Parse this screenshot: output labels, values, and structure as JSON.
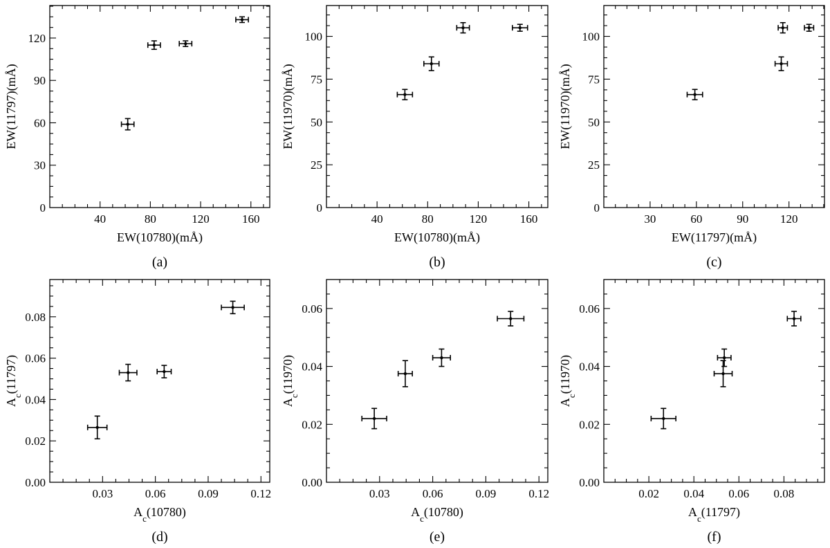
{
  "figure": {
    "panels": [
      {
        "panel_label": "(a)",
        "xlabel_main": "EW(10780)(mÅ)",
        "xlabel_sub": "",
        "xlabel_tail": "",
        "ylabel_main": "EW(11797)(mÅ)",
        "ylabel_sub": "",
        "ylabel_tail": ""
      },
      {
        "panel_label": "(b)",
        "xlabel_main": "EW(10780)(mÅ)",
        "xlabel_sub": "",
        "xlabel_tail": "",
        "ylabel_main": "EW(11970)(mÅ)",
        "ylabel_sub": "",
        "ylabel_tail": ""
      },
      {
        "panel_label": "(c)",
        "xlabel_main": "EW(11797)(mÅ)",
        "xlabel_sub": "",
        "xlabel_tail": "",
        "ylabel_main": "EW(11970)(mÅ)",
        "ylabel_sub": "",
        "ylabel_tail": ""
      },
      {
        "panel_label": "(d)",
        "xlabel_main": "A",
        "xlabel_sub": "c",
        "xlabel_tail": "(10780)",
        "ylabel_main": "A",
        "ylabel_sub": "c",
        "ylabel_tail": "(11797)"
      },
      {
        "panel_label": "(e)",
        "xlabel_main": "A",
        "xlabel_sub": "c",
        "xlabel_tail": "(10780)",
        "ylabel_main": "A",
        "ylabel_sub": "c",
        "ylabel_tail": "(11970)"
      },
      {
        "panel_label": "(f)",
        "xlabel_main": "A",
        "xlabel_sub": "c",
        "xlabel_tail": "(11797)",
        "ylabel_main": "A",
        "ylabel_sub": "c",
        "ylabel_tail": "(11970)"
      }
    ]
  },
  "chart_data": [
    {
      "type": "scatter",
      "title": "",
      "xlabel": "EW(10780)(mÅ)",
      "ylabel": "EW(11797)(mÅ)",
      "xlim": [
        0,
        175
      ],
      "ylim": [
        0,
        143
      ],
      "xticks": [
        40,
        80,
        120,
        160
      ],
      "yticks": [
        0,
        30,
        60,
        90,
        120
      ],
      "xtick_labels": [
        "40",
        "80",
        "120",
        "160"
      ],
      "ytick_labels": [
        "0",
        "30",
        "60",
        "90",
        "120"
      ],
      "grid": false,
      "points": [
        {
          "x": 62,
          "y": 59,
          "xerr": 5,
          "yerr": 4
        },
        {
          "x": 83,
          "y": 115,
          "xerr": 5,
          "yerr": 3
        },
        {
          "x": 108,
          "y": 116,
          "xerr": 5,
          "yerr": 2
        },
        {
          "x": 153,
          "y": 133,
          "xerr": 5,
          "yerr": 2
        }
      ]
    },
    {
      "type": "scatter",
      "title": "",
      "xlabel": "EW(10780)(mÅ)",
      "ylabel": "EW(11970)(mÅ)",
      "xlim": [
        0,
        175
      ],
      "ylim": [
        0,
        118
      ],
      "xticks": [
        40,
        80,
        120,
        160
      ],
      "yticks": [
        0,
        25,
        50,
        75,
        100
      ],
      "xtick_labels": [
        "40",
        "80",
        "120",
        "160"
      ],
      "ytick_labels": [
        "0",
        "25",
        "50",
        "75",
        "100"
      ],
      "grid": false,
      "points": [
        {
          "x": 62,
          "y": 66,
          "xerr": 6,
          "yerr": 3
        },
        {
          "x": 83,
          "y": 84,
          "xerr": 6,
          "yerr": 4
        },
        {
          "x": 108,
          "y": 105,
          "xerr": 5,
          "yerr": 3
        },
        {
          "x": 153,
          "y": 105,
          "xerr": 6,
          "yerr": 2
        }
      ]
    },
    {
      "type": "scatter",
      "title": "",
      "xlabel": "EW(11797)(mÅ)",
      "ylabel": "EW(11970)(mÅ)",
      "xlim": [
        0,
        143
      ],
      "ylim": [
        0,
        118
      ],
      "xticks": [
        30,
        60,
        90,
        120
      ],
      "yticks": [
        0,
        25,
        50,
        75,
        100
      ],
      "xtick_labels": [
        "30",
        "60",
        "90",
        "120"
      ],
      "ytick_labels": [
        "0",
        "25",
        "50",
        "75",
        "100"
      ],
      "grid": false,
      "points": [
        {
          "x": 59,
          "y": 66,
          "xerr": 5,
          "yerr": 3
        },
        {
          "x": 115,
          "y": 84,
          "xerr": 4,
          "yerr": 4
        },
        {
          "x": 116,
          "y": 105,
          "xerr": 3,
          "yerr": 3
        },
        {
          "x": 133,
          "y": 105,
          "xerr": 3,
          "yerr": 2
        }
      ]
    },
    {
      "type": "scatter",
      "title": "",
      "xlabel": "Ac(10780)",
      "ylabel": "Ac(11797)",
      "xlim": [
        0,
        0.125
      ],
      "ylim": [
        0,
        0.098
      ],
      "xticks": [
        0.03,
        0.06,
        0.09,
        0.12
      ],
      "yticks": [
        0,
        0.02,
        0.04,
        0.06,
        0.08
      ],
      "xtick_labels": [
        "0.03",
        "0.06",
        "0.09",
        "0.12"
      ],
      "ytick_labels": [
        "0.00",
        "0.02",
        "0.04",
        "0.06",
        "0.08"
      ],
      "grid": false,
      "points": [
        {
          "x": 0.027,
          "y": 0.0265,
          "xerr": 0.0055,
          "yerr": 0.0055
        },
        {
          "x": 0.0445,
          "y": 0.053,
          "xerr": 0.005,
          "yerr": 0.004
        },
        {
          "x": 0.065,
          "y": 0.0535,
          "xerr": 0.004,
          "yerr": 0.003
        },
        {
          "x": 0.104,
          "y": 0.0845,
          "xerr": 0.0065,
          "yerr": 0.003
        }
      ]
    },
    {
      "type": "scatter",
      "title": "",
      "xlabel": "Ac(10780)",
      "ylabel": "Ac(11970)",
      "xlim": [
        0,
        0.125
      ],
      "ylim": [
        0,
        0.07
      ],
      "xticks": [
        0.03,
        0.06,
        0.09,
        0.12
      ],
      "yticks": [
        0,
        0.02,
        0.04,
        0.06
      ],
      "xtick_labels": [
        "0.03",
        "0.06",
        "0.09",
        "0.12"
      ],
      "ytick_labels": [
        "0.00",
        "0.02",
        "0.04",
        "0.06"
      ],
      "grid": false,
      "points": [
        {
          "x": 0.027,
          "y": 0.022,
          "xerr": 0.007,
          "yerr": 0.0035
        },
        {
          "x": 0.0445,
          "y": 0.0375,
          "xerr": 0.004,
          "yerr": 0.0045
        },
        {
          "x": 0.065,
          "y": 0.043,
          "xerr": 0.005,
          "yerr": 0.003
        },
        {
          "x": 0.104,
          "y": 0.0565,
          "xerr": 0.0075,
          "yerr": 0.0025
        }
      ]
    },
    {
      "type": "scatter",
      "title": "",
      "xlabel": "Ac(11797)",
      "ylabel": "Ac(11970)",
      "xlim": [
        0,
        0.098
      ],
      "ylim": [
        0,
        0.07
      ],
      "xticks": [
        0.02,
        0.04,
        0.06,
        0.08
      ],
      "yticks": [
        0,
        0.02,
        0.04,
        0.06
      ],
      "xtick_labels": [
        "0.02",
        "0.04",
        "0.06",
        "0.08"
      ],
      "ytick_labels": [
        "0.00",
        "0.02",
        "0.04",
        "0.06"
      ],
      "grid": false,
      "points": [
        {
          "x": 0.0265,
          "y": 0.022,
          "xerr": 0.0055,
          "yerr": 0.0035
        },
        {
          "x": 0.053,
          "y": 0.0375,
          "xerr": 0.004,
          "yerr": 0.0045
        },
        {
          "x": 0.0535,
          "y": 0.043,
          "xerr": 0.003,
          "yerr": 0.003
        },
        {
          "x": 0.0845,
          "y": 0.0565,
          "xerr": 0.003,
          "yerr": 0.0025
        }
      ]
    }
  ]
}
